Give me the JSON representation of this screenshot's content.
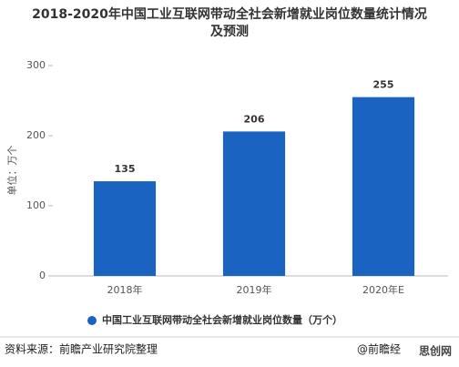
{
  "chart_data": {
    "type": "bar",
    "title": "2018-2020年中国工业互联网带动全社会新增就业岗位数量统计情况及预测",
    "y_label": "单位：万个",
    "categories": [
      "2018年",
      "2019年",
      "2020年E"
    ],
    "series": [
      {
        "name": "中国工业互联网带动全社会新增就业岗位数量（万个）",
        "color": "#1a63c1",
        "values": [
          135,
          206,
          255
        ]
      }
    ],
    "ylim": [
      0,
      300
    ],
    "yticks": [
      0,
      100,
      200,
      300
    ],
    "grid": false,
    "source": "资料来源：前瞻产业研究院整理",
    "watermark": "@前瞻经",
    "logo": "思创网"
  }
}
